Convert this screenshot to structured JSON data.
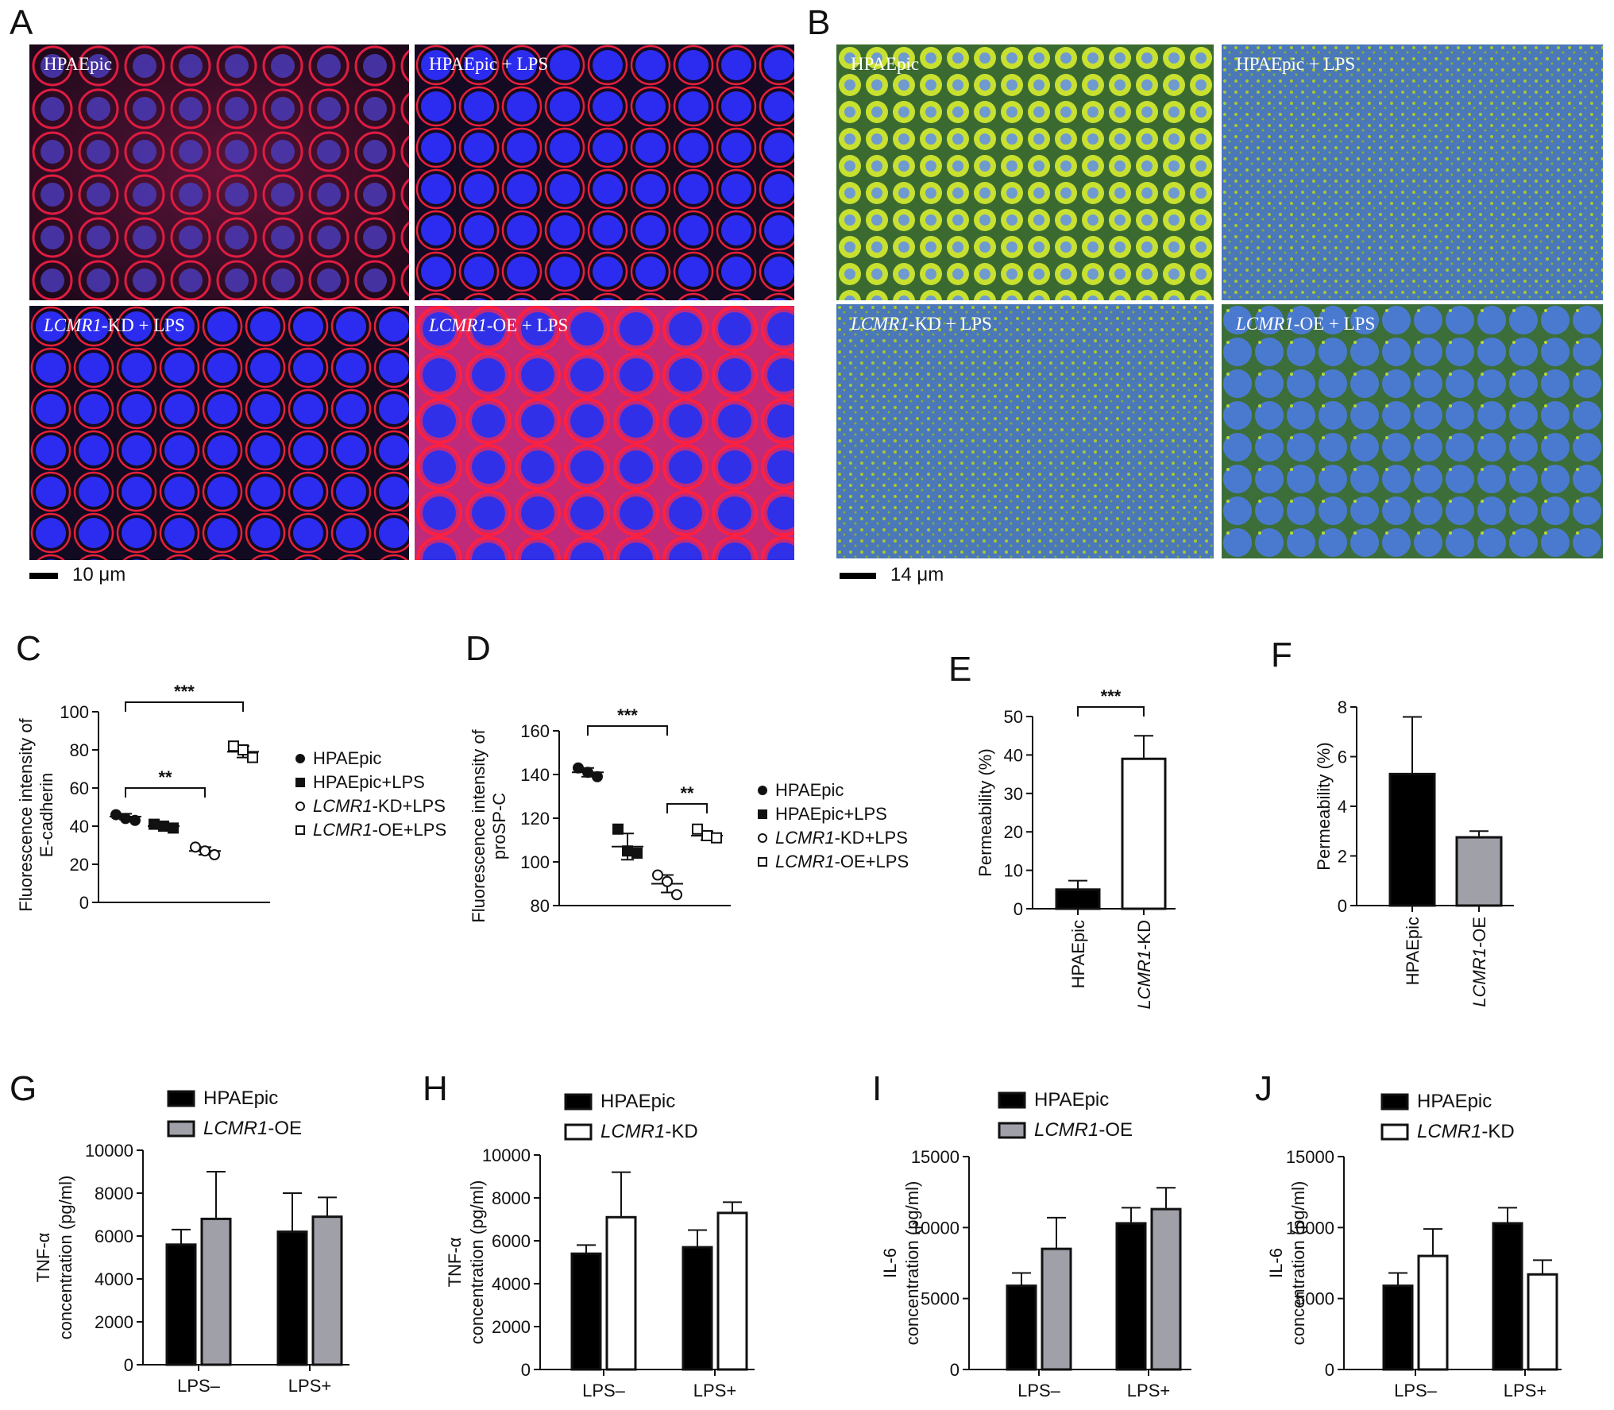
{
  "panel_labels": [
    "A",
    "B",
    "C",
    "D",
    "E",
    "F",
    "G",
    "H",
    "I",
    "J"
  ],
  "panel_a": {
    "images": [
      {
        "label": "HPAEpic",
        "italic": ""
      },
      {
        "label": "HPAEpic + LPS",
        "italic": ""
      },
      {
        "label": "-KD + LPS",
        "italic": "LCMR1"
      },
      {
        "label": "-OE + LPS",
        "italic": "LCMR1"
      }
    ],
    "scale_label": "10 μm",
    "colors": {
      "membrane": "#e0203a",
      "nucleus": "#2a2ae8",
      "background": "#180818"
    }
  },
  "panel_b": {
    "images": [
      {
        "label": "HPAEpic",
        "italic": ""
      },
      {
        "label": "HPAEpic + LPS",
        "italic": ""
      },
      {
        "label": "-KD + LPS",
        "italic": "LCMR1"
      },
      {
        "label": "-OE + LPS",
        "italic": "LCMR1"
      }
    ],
    "scale_label": "14 μm",
    "colors": {
      "stain": "#c8e020",
      "nucleus": "#3060d0",
      "background": "#1e4a30"
    }
  },
  "chart_data": [
    {
      "panel": "C",
      "type": "scatter",
      "ylabel": "Fluorescence intensity of E-cadherin",
      "ylim": [
        0,
        100
      ],
      "yticks": [
        0,
        20,
        40,
        60,
        80,
        100
      ],
      "groups": [
        {
          "name": "HPAEpic",
          "marker": "filled-circle",
          "points": [
            46,
            44,
            43
          ],
          "mean": 45,
          "sd": 1.5
        },
        {
          "name": "HPAEpic+LPS",
          "marker": "filled-square",
          "points": [
            41,
            40,
            39
          ],
          "mean": 40,
          "sd": 1
        },
        {
          "name": "LCMR1-KD+LPS",
          "marker": "open-circle",
          "points": [
            29,
            27,
            25
          ],
          "mean": 27,
          "sd": 2
        },
        {
          "name": "LCMR1-OE+LPS",
          "marker": "open-square",
          "points": [
            82,
            80,
            76
          ],
          "mean": 79,
          "sd": 3
        }
      ],
      "legend": [
        {
          "italic": "",
          "text": "HPAEpic"
        },
        {
          "italic": "",
          "text": "HPAEpic+LPS"
        },
        {
          "italic": "LCMR1",
          "text": "-KD+LPS"
        },
        {
          "italic": "LCMR1",
          "text": "-OE+LPS"
        }
      ],
      "annotations": [
        {
          "from": 0,
          "to": 3,
          "text": "***"
        },
        {
          "from": 0,
          "to": 2,
          "text": "**"
        }
      ]
    },
    {
      "panel": "D",
      "type": "scatter",
      "ylabel": "Fluorescence intensity of proSP-C",
      "ylim": [
        80,
        160
      ],
      "yticks": [
        80,
        100,
        120,
        140,
        160
      ],
      "groups": [
        {
          "name": "HPAEpic",
          "marker": "filled-circle",
          "points": [
            143,
            141,
            139
          ],
          "mean": 141,
          "sd": 2
        },
        {
          "name": "HPAEpic+LPS",
          "marker": "filled-square",
          "points": [
            115,
            105,
            104
          ],
          "mean": 107,
          "sd": 6
        },
        {
          "name": "LCMR1-KD+LPS",
          "marker": "open-circle",
          "points": [
            94,
            91,
            85
          ],
          "mean": 90,
          "sd": 4
        },
        {
          "name": "LCMR1-OE+LPS",
          "marker": "open-square",
          "points": [
            115,
            112,
            111
          ],
          "mean": 112,
          "sd": 2
        }
      ],
      "legend": [
        {
          "italic": "",
          "text": "HPAEpic"
        },
        {
          "italic": "",
          "text": "HPAEpic+LPS"
        },
        {
          "italic": "LCMR1",
          "text": "-KD+LPS"
        },
        {
          "italic": "LCMR1",
          "text": "-OE+LPS"
        }
      ],
      "annotations": [
        {
          "from": 0,
          "to": 2,
          "text": "***"
        },
        {
          "from": 2,
          "to": 3,
          "text": "**"
        }
      ]
    },
    {
      "panel": "E",
      "type": "bar",
      "ylabel": "Permeability (%)",
      "ylim": [
        0,
        50
      ],
      "yticks": [
        0,
        10,
        20,
        30,
        40,
        50
      ],
      "categories": [
        {
          "italic": "",
          "text": "HPAEpic"
        },
        {
          "italic": "LCMR1",
          "text": "-KD"
        }
      ],
      "values": [
        5,
        39
      ],
      "errors": [
        2.3,
        6
      ],
      "fills": [
        "#000000",
        "#ffffff"
      ],
      "annotation": "***"
    },
    {
      "panel": "F",
      "type": "bar",
      "ylabel": "Permeability (%)",
      "ylim": [
        0,
        8
      ],
      "yticks": [
        0,
        2,
        4,
        6,
        8
      ],
      "categories": [
        {
          "italic": "",
          "text": "HPAEpic"
        },
        {
          "italic": "LCMR1",
          "text": "-OE"
        }
      ],
      "values": [
        5.3,
        2.75
      ],
      "errors": [
        2.3,
        0.25
      ],
      "fills": [
        "#000000",
        "#a0a0a8"
      ]
    },
    {
      "panel": "G",
      "type": "bar",
      "ylabel": "TNF-α",
      "ylabel2": "concentration (pg/ml)",
      "ylim": [
        0,
        10000
      ],
      "yticks": [
        0,
        2000,
        4000,
        6000,
        8000,
        10000
      ],
      "categories": [
        "LPS–",
        "LPS+"
      ],
      "series": [
        {
          "name": "HPAEpic",
          "italic": "",
          "values": [
            5600,
            6200
          ],
          "errors": [
            700,
            1800
          ],
          "fill": "#000000"
        },
        {
          "name": "-OE",
          "italic": "LCMR1",
          "values": [
            6800,
            6900
          ],
          "errors": [
            2200,
            900
          ],
          "fill": "#a0a0a8"
        }
      ]
    },
    {
      "panel": "H",
      "type": "bar",
      "ylabel": "TNF-α",
      "ylabel2": "concentration (pg/ml)",
      "ylim": [
        0,
        10000
      ],
      "yticks": [
        0,
        2000,
        4000,
        6000,
        8000,
        10000
      ],
      "categories": [
        "LPS–",
        "LPS+"
      ],
      "series": [
        {
          "name": "HPAEpic",
          "italic": "",
          "values": [
            5400,
            5700
          ],
          "errors": [
            400,
            800
          ],
          "fill": "#000000"
        },
        {
          "name": "-KD",
          "italic": "LCMR1",
          "values": [
            7100,
            7300
          ],
          "errors": [
            2100,
            500
          ],
          "fill": "#ffffff"
        }
      ]
    },
    {
      "panel": "I",
      "type": "bar",
      "ylabel": "IL-6",
      "ylabel2": "concentration (pg/ml)",
      "ylim": [
        0,
        15000
      ],
      "yticks": [
        0,
        5000,
        10000,
        15000
      ],
      "categories": [
        "LPS–",
        "LPS+"
      ],
      "series": [
        {
          "name": "HPAEpic",
          "italic": "",
          "values": [
            5900,
            10300
          ],
          "errors": [
            900,
            1100
          ],
          "fill": "#000000"
        },
        {
          "name": "-OE",
          "italic": "LCMR1",
          "values": [
            8500,
            11300
          ],
          "errors": [
            2200,
            1500
          ],
          "fill": "#a0a0a8"
        }
      ]
    },
    {
      "panel": "J",
      "type": "bar",
      "ylabel": "IL-6",
      "ylabel2": "concentration (pg/ml)",
      "ylim": [
        0,
        15000
      ],
      "yticks": [
        0,
        5000,
        10000,
        15000
      ],
      "categories": [
        "LPS–",
        "LPS+"
      ],
      "series": [
        {
          "name": "HPAEpic",
          "italic": "",
          "values": [
            5900,
            10300
          ],
          "errors": [
            900,
            1100
          ],
          "fill": "#000000"
        },
        {
          "name": "-KD",
          "italic": "LCMR1",
          "values": [
            8000,
            6700
          ],
          "errors": [
            1900,
            1000
          ],
          "fill": "#ffffff"
        }
      ]
    }
  ]
}
